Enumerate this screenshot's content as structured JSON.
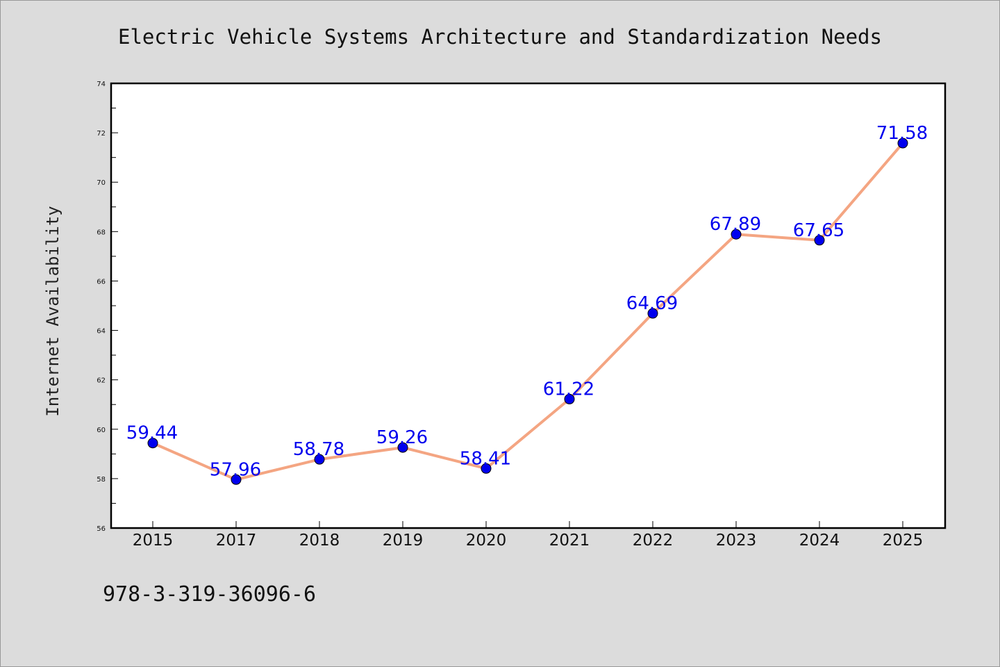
{
  "chart_data": {
    "type": "line",
    "title": "Electric Vehicle Systems Architecture and Standardization Needs",
    "xlabel": "",
    "ylabel": "Internet Availability",
    "categories": [
      "2015",
      "2017",
      "2018",
      "2019",
      "2020",
      "2021",
      "2022",
      "2023",
      "2024",
      "2025"
    ],
    "series": [
      {
        "values": [
          59.44,
          57.96,
          58.78,
          59.26,
          58.41,
          61.22,
          64.69,
          67.89,
          67.65,
          71.58
        ],
        "labels": [
          "59.44",
          "57.96",
          "58.78",
          "59.26",
          "58.41",
          "61.22",
          "64.69",
          "67.89",
          "67.65",
          "71.58"
        ]
      }
    ],
    "ylim": [
      56,
      74
    ],
    "yticks": [
      "56",
      "58",
      "60",
      "62",
      "64",
      "66",
      "68",
      "70",
      "72",
      "74"
    ],
    "grid": false,
    "legend": "none",
    "colors": {
      "line": "#f4a582",
      "marker": "#0000ee",
      "data_label": "#0000ee",
      "background": "#dcdcdc",
      "plot_background": "#ffffff"
    }
  },
  "footer": {
    "isbn": "978-3-319-36096-6"
  }
}
